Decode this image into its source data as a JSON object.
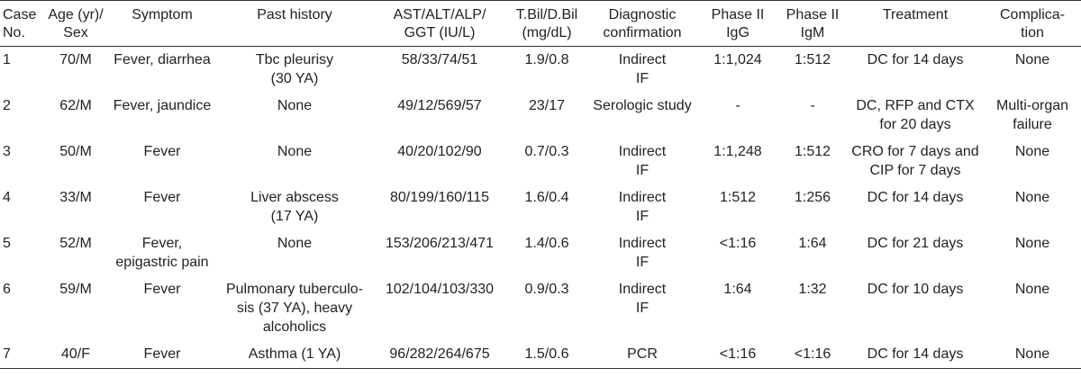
{
  "headers": [
    "Case\nNo.",
    "Age (yr)/\nSex",
    "Symptom",
    "Past history",
    "AST/ALT/ALP/\nGGT (IU/L)",
    "T.Bil/D.Bil\n(mg/dL)",
    "Diagnostic\nconfirmation",
    "Phase II\nIgG",
    "Phase II\nIgM",
    "Treatment",
    "Complica-\ntion"
  ],
  "rows": [
    [
      "1",
      "70/M",
      "Fever, diarrhea",
      "Tbc pleurisy\n(30 YA)",
      "58/33/74/51",
      "1.9/0.8",
      "Indirect\nIF",
      "1:1,024",
      "1:512",
      "DC for 14 days",
      "None"
    ],
    [
      "2",
      "62/M",
      "Fever, jaundice",
      "None",
      "49/12/569/57",
      "23/17",
      "Serologic study",
      "-",
      "-",
      "DC, RFP and CTX\nfor 20 days",
      "Multi-organ\nfailure"
    ],
    [
      "3",
      "50/M",
      "Fever",
      "None",
      "40/20/102/90",
      "0.7/0.3",
      "Indirect\nIF",
      "1:1,248",
      "1:512",
      "CRO for 7 days and\nCIP for 7 days",
      "None"
    ],
    [
      "4",
      "33/M",
      "Fever",
      "Liver abscess\n(17 YA)",
      "80/199/160/115",
      "1.6/0.4",
      "Indirect\nIF",
      "1:512",
      "1:256",
      "DC for 14 days",
      "None"
    ],
    [
      "5",
      "52/M",
      "Fever,\nepigastric pain",
      "None",
      "153/206/213/471",
      "1.4/0.6",
      "Indirect\nIF",
      "<1:16",
      "1:64",
      "DC for 21 days",
      "None"
    ],
    [
      "6",
      "59/M",
      "Fever",
      "Pulmonary tuberculo-\nsis (37 YA), heavy\nalcoholics",
      "102/104/103/330",
      "0.9/0.3",
      "Indirect\nIF",
      "1:64",
      "1:32",
      "DC for 10 days",
      "None"
    ],
    [
      "7",
      "40/F",
      "Fever",
      "Asthma (1 YA)",
      "96/282/264/675",
      "1.5/0.6",
      "PCR",
      "<1:16",
      "<1:16",
      "DC for 14 days",
      "None"
    ]
  ]
}
